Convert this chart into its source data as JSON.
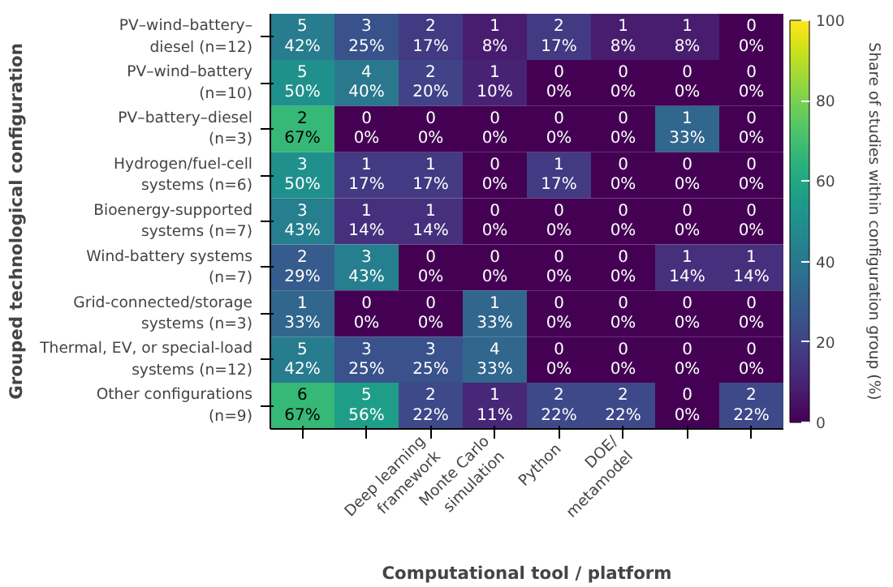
{
  "chart_data": {
    "type": "heatmap",
    "xlabel": "Computational tool / platform",
    "ylabel": "Grouped technological configuration",
    "clabel": "Share of studies within configuration group (%)",
    "categories": [
      null,
      null,
      "Deep learning\nframework",
      "Monte Carlo\nsimulation",
      "Python",
      "DOE/\nmetamodel",
      null,
      null
    ],
    "y_categories": [
      "PV–wind–battery–\ndiesel (n=12)",
      "PV–wind–battery\n(n=10)",
      "PV–battery–diesel\n(n=3)",
      "Hydrogen/fuel-cell\nsystems (n=6)",
      "Bioenergy-supported\nsystems (n=7)",
      "Wind-battery systems\n(n=7)",
      "Grid-connected/storage\nsystems (n=3)",
      "Thermal, EV, or special-load\nsystems (n=12)",
      "Other configurations\n(n=9)"
    ],
    "cells": [
      [
        42,
        25,
        17,
        8,
        17,
        8,
        8,
        0
      ],
      [
        50,
        40,
        20,
        10,
        0,
        0,
        0,
        0
      ],
      [
        67,
        0,
        0,
        0,
        0,
        0,
        33,
        0
      ],
      [
        50,
        17,
        17,
        0,
        17,
        0,
        0,
        0
      ],
      [
        43,
        14,
        14,
        0,
        0,
        0,
        0,
        0
      ],
      [
        29,
        43,
        0,
        0,
        0,
        0,
        14,
        14
      ],
      [
        33,
        0,
        0,
        33,
        0,
        0,
        0,
        0
      ],
      [
        42,
        25,
        25,
        33,
        0,
        0,
        0,
        0
      ],
      [
        67,
        56,
        22,
        11,
        22,
        22,
        0,
        22
      ]
    ],
    "cell_labels": [
      [
        "5\n42%",
        "3\n25%",
        "2\n17%",
        "1\n8%",
        "2\n17%",
        "1\n8%",
        "1\n8%",
        "0\n0%"
      ],
      [
        "5\n50%",
        "4\n40%",
        "2\n20%",
        "1\n10%",
        "0\n0%",
        "0\n0%",
        "0\n0%",
        "0\n0%"
      ],
      [
        "2\n67%",
        "0\n0%",
        "0\n0%",
        "0\n0%",
        "0\n0%",
        "0\n0%",
        "1\n33%",
        "0\n0%"
      ],
      [
        "3\n50%",
        "1\n17%",
        "1\n17%",
        "0\n0%",
        "1\n17%",
        "0\n0%",
        "0\n0%",
        "0\n0%"
      ],
      [
        "3\n43%",
        "1\n14%",
        "1\n14%",
        "0\n0%",
        "0\n0%",
        "0\n0%",
        "0\n0%",
        "0\n0%"
      ],
      [
        "2\n29%",
        "3\n43%",
        "0\n0%",
        "0\n0%",
        "0\n0%",
        "0\n0%",
        "1\n14%",
        "1\n14%"
      ],
      [
        "1\n33%",
        "0\n0%",
        "0\n0%",
        "1\n33%",
        "0\n0%",
        "0\n0%",
        "0\n0%",
        "0\n0%"
      ],
      [
        "5\n42%",
        "3\n25%",
        "3\n25%",
        "4\n33%",
        "0\n0%",
        "0\n0%",
        "0\n0%",
        "0\n0%"
      ],
      [
        "6\n67%",
        "5\n56%",
        "2\n22%",
        "1\n11%",
        "2\n22%",
        "2\n22%",
        "0\n0%",
        "2\n22%"
      ]
    ],
    "clim": [
      0,
      100
    ],
    "cticks": [
      0,
      20,
      40,
      60,
      80,
      100
    ]
  }
}
